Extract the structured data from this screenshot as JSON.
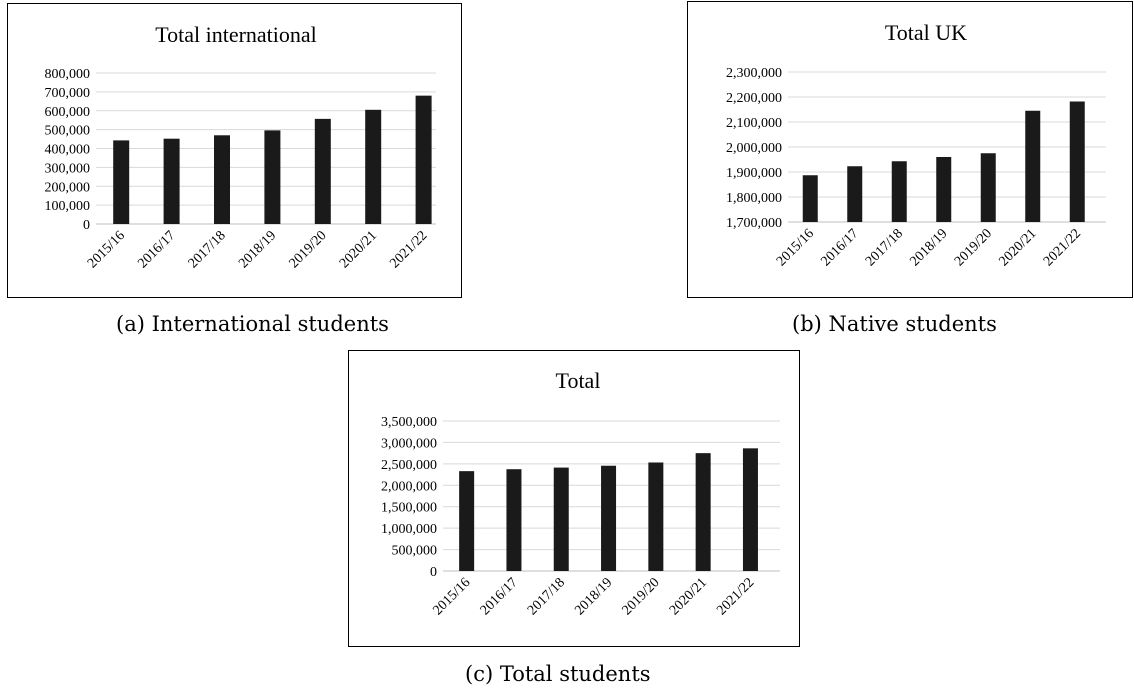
{
  "charts": [
    {
      "id": "a",
      "caption": "(a) International students",
      "chart_data": {
        "type": "bar",
        "title": "Total international",
        "xlabel": "",
        "ylabel": "",
        "categories": [
          "2015/16",
          "2016/17",
          "2017/18",
          "2018/19",
          "2019/20",
          "2020/21",
          "2021/22"
        ],
        "values": [
          443000,
          452000,
          470000,
          496000,
          557000,
          605000,
          680000
        ],
        "ylim": [
          0,
          800000
        ],
        "yticks": [
          0,
          100000,
          200000,
          300000,
          400000,
          500000,
          600000,
          700000,
          800000
        ],
        "ytick_labels": [
          "0",
          "100,000",
          "200,000",
          "300,000",
          "400,000",
          "500,000",
          "600,000",
          "700,000",
          "800,000"
        ],
        "bar_color": "#1a1a1a",
        "grid": true,
        "legend": "none"
      }
    },
    {
      "id": "b",
      "caption": "(b) Native students",
      "chart_data": {
        "type": "bar",
        "title": "Total UK",
        "xlabel": "",
        "ylabel": "",
        "categories": [
          "2015/16",
          "2016/17",
          "2017/18",
          "2018/19",
          "2019/20",
          "2020/21",
          "2021/22"
        ],
        "values": [
          1887000,
          1923000,
          1943000,
          1960000,
          1975000,
          2145000,
          2182000
        ],
        "ylim": [
          1700000,
          2300000
        ],
        "yticks": [
          1700000,
          1800000,
          1900000,
          2000000,
          2100000,
          2200000,
          2300000
        ],
        "ytick_labels": [
          "1,700,000",
          "1,800,000",
          "1,900,000",
          "2,000,000",
          "2,100,000",
          "2,200,000",
          "2,300,000"
        ],
        "bar_color": "#1a1a1a",
        "grid": true,
        "legend": "none"
      }
    },
    {
      "id": "c",
      "caption": "(c) Total students",
      "chart_data": {
        "type": "bar",
        "title": "Total",
        "xlabel": "",
        "ylabel": "",
        "categories": [
          "2015/16",
          "2016/17",
          "2017/18",
          "2018/19",
          "2019/20",
          "2020/21",
          "2021/22"
        ],
        "values": [
          2330000,
          2375000,
          2413000,
          2456000,
          2532000,
          2750000,
          2862000
        ],
        "ylim": [
          0,
          3500000
        ],
        "yticks": [
          0,
          500000,
          1000000,
          1500000,
          2000000,
          2500000,
          3000000,
          3500000
        ],
        "ytick_labels": [
          "0",
          "500,000",
          "1,000,000",
          "1,500,000",
          "2,000,000",
          "2,500,000",
          "3,000,000",
          "3,500,000"
        ],
        "bar_color": "#1a1a1a",
        "grid": true,
        "legend": "none"
      }
    }
  ]
}
